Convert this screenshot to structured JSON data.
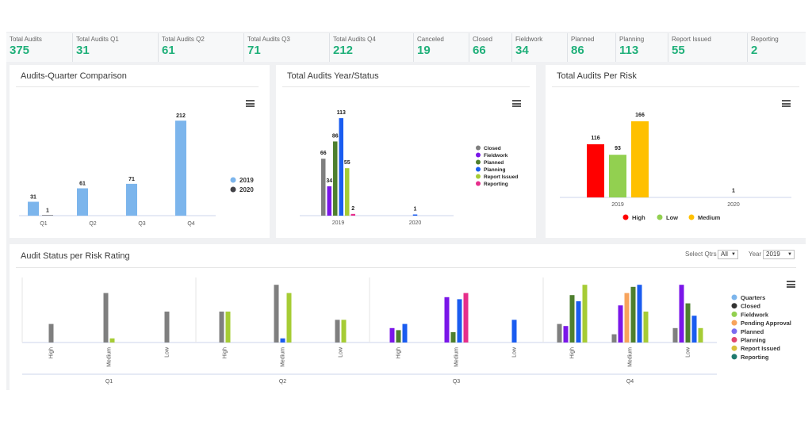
{
  "kpis": [
    {
      "label": "Total Audits",
      "value": "375"
    },
    {
      "label": "Total Audits Q1",
      "value": "31"
    },
    {
      "label": "Total Audits Q2",
      "value": "61"
    },
    {
      "label": "Total Audits Q3",
      "value": "71"
    },
    {
      "label": "Total Audits Q4",
      "value": "212"
    },
    {
      "label": "Canceled",
      "value": "19"
    },
    {
      "label": "Closed",
      "value": "66"
    },
    {
      "label": "Fieldwork",
      "value": "34"
    },
    {
      "label": "Planned",
      "value": "86"
    },
    {
      "label": "Planning",
      "value": "113"
    },
    {
      "label": "Report Issued",
      "value": "55"
    },
    {
      "label": "Reporting",
      "value": "2"
    }
  ],
  "colors": {
    "kpi_value": "#20b07a",
    "c2019": "#7cb5ec",
    "c2020": "#434348",
    "Closed": "#7f7f7f",
    "Fieldwork": "#7a16e8",
    "Planned": "#4e7f2e",
    "Planning": "#1a5cf0",
    "Report Issued": "#a6cc35",
    "Reporting": "#e62e8b",
    "High": "#ff0000",
    "Low": "#92d050",
    "Medium": "#ffc000",
    "Quarters": "#7cb5ec",
    "Pending Approval": "#f7a35c"
  },
  "panels": {
    "p1": {
      "title": "Audits-Quarter Comparison"
    },
    "p2": {
      "title": "Total Audits Year/Status"
    },
    "p3": {
      "title": "Total Audits Per Risk"
    },
    "p4": {
      "title": "Audit Status per Risk Rating"
    }
  },
  "filters": {
    "qtrs_label": "Select Qtrs",
    "qtrs_value": "All",
    "year_label": "Year",
    "year_value": "2019"
  },
  "chart_data": [
    {
      "type": "bar",
      "title": "Audits-Quarter Comparison",
      "categories": [
        "Q1",
        "Q2",
        "Q3",
        "Q4"
      ],
      "series": [
        {
          "name": "2019",
          "values": [
            31,
            61,
            71,
            212
          ]
        },
        {
          "name": "2020",
          "values": [
            1,
            null,
            null,
            null
          ]
        }
      ],
      "ylim": [
        0,
        230
      ],
      "legend": "right",
      "grid": false
    },
    {
      "type": "bar",
      "title": "Total Audits Year/Status",
      "categories": [
        "2019",
        "2020"
      ],
      "series": [
        {
          "name": "Closed",
          "values": [
            66,
            null
          ]
        },
        {
          "name": "Fieldwork",
          "values": [
            34,
            null
          ]
        },
        {
          "name": "Planned",
          "values": [
            86,
            null
          ]
        },
        {
          "name": "Planning",
          "values": [
            113,
            1
          ]
        },
        {
          "name": "Report Issued",
          "values": [
            55,
            null
          ]
        },
        {
          "name": "Reporting",
          "values": [
            2,
            null
          ]
        }
      ],
      "ylim": [
        0,
        125
      ],
      "legend": "right",
      "grid": false
    },
    {
      "type": "bar",
      "title": "Total Audits Per Risk",
      "categories": [
        "2019",
        "2020"
      ],
      "series": [
        {
          "name": "High",
          "values": [
            116,
            null
          ]
        },
        {
          "name": "Low",
          "values": [
            93,
            1
          ]
        },
        {
          "name": "Medium",
          "values": [
            166,
            null
          ]
        }
      ],
      "ylim": [
        0,
        185
      ],
      "legend": "bottom",
      "grid": false
    },
    {
      "type": "bar",
      "title": "Audit Status per Risk Rating",
      "groups": [
        "Q1",
        "Q2",
        "Q3",
        "Q4"
      ],
      "categories": [
        "High",
        "Medium",
        "Low"
      ],
      "legend_items": [
        "Quarters",
        "Closed",
        "Fieldwork",
        "Pending Approval",
        "Planned",
        "Planning",
        "Report Issued",
        "Reporting"
      ],
      "bars": [
        {
          "group": "Q1",
          "category": "High",
          "series": "Closed",
          "value": 9
        },
        {
          "group": "Q1",
          "category": "Medium",
          "series": "Closed",
          "value": 24
        },
        {
          "group": "Q1",
          "category": "Medium",
          "series": "Report Issued",
          "value": 2
        },
        {
          "group": "Q1",
          "category": "Low",
          "series": "Closed",
          "value": 15
        },
        {
          "group": "Q2",
          "category": "High",
          "series": "Closed",
          "value": 15
        },
        {
          "group": "Q2",
          "category": "High",
          "series": "Report Issued",
          "value": 15
        },
        {
          "group": "Q2",
          "category": "Medium",
          "series": "Closed",
          "value": 28
        },
        {
          "group": "Q2",
          "category": "Medium",
          "series": "Planning",
          "value": 2
        },
        {
          "group": "Q2",
          "category": "Medium",
          "series": "Report Issued",
          "value": 24
        },
        {
          "group": "Q2",
          "category": "Low",
          "series": "Closed",
          "value": 11
        },
        {
          "group": "Q2",
          "category": "Low",
          "series": "Report Issued",
          "value": 11
        },
        {
          "group": "Q3",
          "category": "High",
          "series": "Fieldwork",
          "value": 7
        },
        {
          "group": "Q3",
          "category": "High",
          "series": "Planned",
          "value": 6
        },
        {
          "group": "Q3",
          "category": "High",
          "series": "Planning",
          "value": 9
        },
        {
          "group": "Q3",
          "category": "Medium",
          "series": "Fieldwork",
          "value": 22
        },
        {
          "group": "Q3",
          "category": "Medium",
          "series": "Planned",
          "value": 5
        },
        {
          "group": "Q3",
          "category": "Medium",
          "series": "Planning",
          "value": 21
        },
        {
          "group": "Q3",
          "category": "Medium",
          "series": "Reporting",
          "value": 24
        },
        {
          "group": "Q3",
          "category": "Low",
          "series": "Planning",
          "value": 11
        },
        {
          "group": "Q4",
          "category": "High",
          "series": "Closed",
          "value": 9
        },
        {
          "group": "Q4",
          "category": "High",
          "series": "Fieldwork",
          "value": 8
        },
        {
          "group": "Q4",
          "category": "High",
          "series": "Planned",
          "value": 23
        },
        {
          "group": "Q4",
          "category": "High",
          "series": "Planning",
          "value": 20
        },
        {
          "group": "Q4",
          "category": "High",
          "series": "Report Issued",
          "value": 28
        },
        {
          "group": "Q4",
          "category": "Medium",
          "series": "Closed",
          "value": 4
        },
        {
          "group": "Q4",
          "category": "Medium",
          "series": "Fieldwork",
          "value": 18
        },
        {
          "group": "Q4",
          "category": "Medium",
          "series": "Pending Approval",
          "value": 24
        },
        {
          "group": "Q4",
          "category": "Medium",
          "series": "Planned",
          "value": 27
        },
        {
          "group": "Q4",
          "category": "Medium",
          "series": "Planning",
          "value": 28
        },
        {
          "group": "Q4",
          "category": "Medium",
          "series": "Report Issued",
          "value": 15
        },
        {
          "group": "Q4",
          "category": "Low",
          "series": "Closed",
          "value": 7
        },
        {
          "group": "Q4",
          "category": "Low",
          "series": "Fieldwork",
          "value": 28
        },
        {
          "group": "Q4",
          "category": "Low",
          "series": "Planned",
          "value": 19
        },
        {
          "group": "Q4",
          "category": "Low",
          "series": "Planning",
          "value": 13
        },
        {
          "group": "Q4",
          "category": "Low",
          "series": "Report Issued",
          "value": 7
        }
      ],
      "ylim": [
        0,
        30
      ],
      "legend": "right",
      "grid": false
    }
  ]
}
